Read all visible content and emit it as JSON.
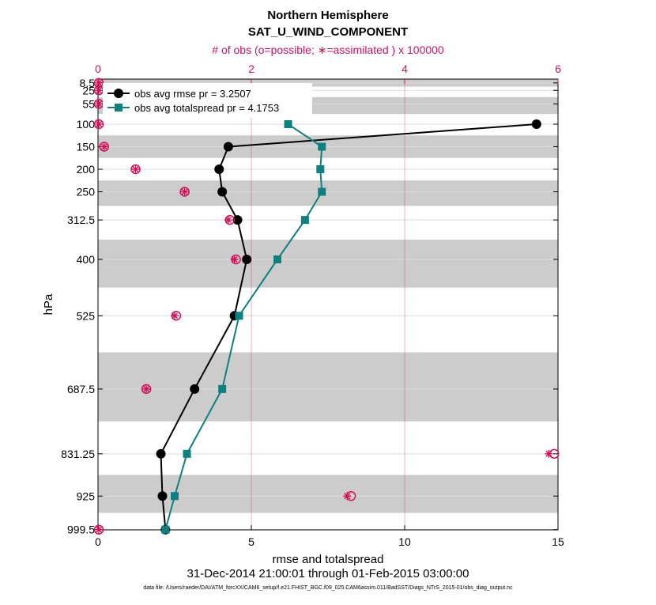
{
  "chart_data": {
    "type": "line",
    "title": "Northern Hemisphere",
    "subtitle": "SAT_U_WIND_COMPONENT",
    "top_axis_label": "# of obs (o=possible; ∗=assimilated ) x 100000",
    "xlabel": "rmse and totalspread",
    "ylabel": "hPa",
    "date_range": "31-Dec-2014 21:00:01 through 01-Feb-2015 03:00:00",
    "data_file": "data file: /Users/raeder/DAI/ATM_forcXX/CAM6_setup/f.e21.FHIST_BGC.f09_025.CAM6assim.011/BadSST/Diags_NTrS_2015-01/obs_diag_output.nc",
    "xlim": [
      0,
      15
    ],
    "x_ticks": [
      "0",
      "5",
      "10",
      "15"
    ],
    "top_xlim": [
      0,
      6
    ],
    "top_ticks": [
      "0",
      "2",
      "4",
      "6"
    ],
    "levels": [
      "8.5",
      "25",
      "55",
      "100",
      "150",
      "200",
      "250",
      "312.5",
      "400",
      "525",
      "687.5",
      "831.25",
      "925",
      "999.5"
    ],
    "series": [
      {
        "name": "obs avg rmse",
        "legend": "obs avg rmse pr = 3.2507",
        "color": "#000000",
        "marker": "circle",
        "values": [
          null,
          null,
          null,
          14.3,
          4.25,
          3.95,
          4.05,
          4.55,
          4.85,
          4.45,
          3.15,
          2.05,
          2.1,
          2.2
        ]
      },
      {
        "name": "obs avg totalspread",
        "legend": "obs avg totalspread pr = 4.1753",
        "color": "#0f7f7f",
        "marker": "square",
        "values": [
          null,
          null,
          null,
          6.2,
          7.3,
          7.25,
          7.3,
          6.75,
          5.85,
          4.6,
          4.05,
          2.9,
          2.5,
          2.2
        ]
      }
    ],
    "obs_possible": [
      0.01,
      0.01,
      0.01,
      0.01,
      0.08,
      0.49,
      1.13,
      1.72,
      1.8,
      1.02,
      0.63,
      5.95,
      3.3,
      0.01
    ],
    "obs_assimilated": [
      0.01,
      0.01,
      0.01,
      0.01,
      0.08,
      0.49,
      1.13,
      1.7,
      1.78,
      1.0,
      0.63,
      5.88,
      3.25,
      0.01
    ],
    "obs_color": "#d6105a",
    "band_color": "#cccccc"
  }
}
